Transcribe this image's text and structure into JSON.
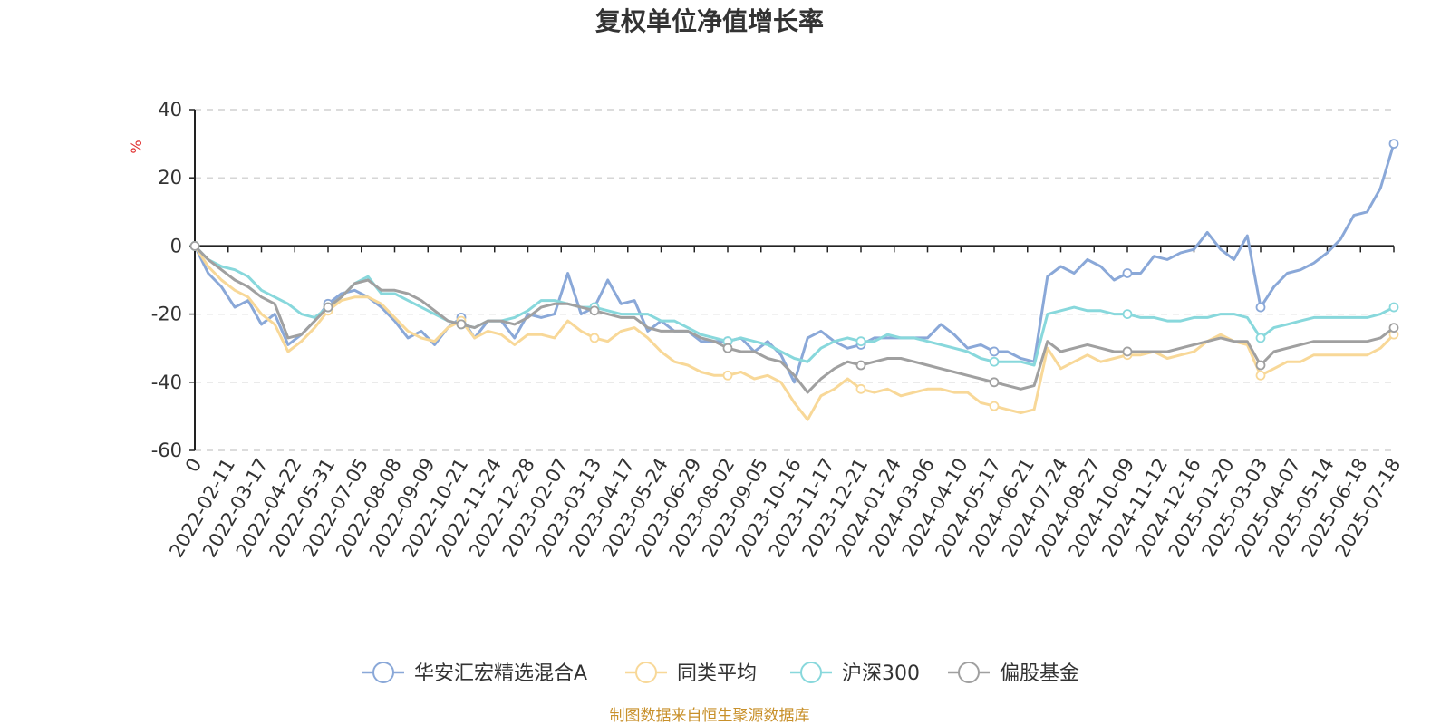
{
  "chart_data": {
    "type": "line",
    "title": "复权单位净值增长率",
    "unit": "%",
    "ylim": [
      -60,
      40
    ],
    "yticks": [
      40,
      20,
      0,
      -20,
      -40,
      -60
    ],
    "grid": true,
    "legend_position": "bottom",
    "x_labels": [
      "0",
      "2022-02-11",
      "2022-03-17",
      "2022-04-22",
      "2022-05-31",
      "2022-07-05",
      "2022-08-08",
      "2022-09-09",
      "2022-10-21",
      "2022-11-24",
      "2022-12-28",
      "2023-02-07",
      "2023-03-13",
      "2023-04-17",
      "2023-05-24",
      "2023-06-29",
      "2023-08-02",
      "2023-09-05",
      "2023-10-16",
      "2023-11-17",
      "2023-12-21",
      "2024-01-24",
      "2024-03-06",
      "2024-04-10",
      "2024-05-17",
      "2024-06-21",
      "2024-07-24",
      "2024-08-27",
      "2024-10-09",
      "2024-11-12",
      "2024-12-16",
      "2025-01-20",
      "2025-03-03",
      "2025-04-07",
      "2025-05-14",
      "2025-06-18",
      "2025-07-18"
    ],
    "series": [
      {
        "name": "华安汇宏精选混合A",
        "color": "#8aa8d8",
        "values": [
          0,
          -8,
          -12,
          -18,
          -16,
          -23,
          -20,
          -29,
          -26,
          -22,
          -17,
          -14,
          -13,
          -15,
          -18,
          -22,
          -27,
          -25,
          -29,
          -24,
          -21,
          -27,
          -22,
          -22,
          -27,
          -20,
          -21,
          -20,
          -8,
          -20,
          -18,
          -10,
          -17,
          -16,
          -25,
          -22,
          -25,
          -25,
          -28,
          -28,
          -28,
          -27,
          -31,
          -28,
          -32,
          -40,
          -27,
          -25,
          -28,
          -30,
          -29,
          -27,
          -27,
          -27,
          -27,
          -27,
          -23,
          -26,
          -30,
          -29,
          -31,
          -31,
          -33,
          -34,
          -9,
          -6,
          -8,
          -4,
          -6,
          -10,
          -8,
          -8,
          -3,
          -4,
          -2,
          -1,
          4,
          -1,
          -4,
          3,
          -18,
          -12,
          -8,
          -7,
          -5,
          -2,
          2,
          9,
          10,
          17,
          30
        ]
      },
      {
        "name": "同类平均",
        "color": "#f8d898",
        "values": [
          0,
          -6,
          -10,
          -13,
          -15,
          -20,
          -23,
          -31,
          -28,
          -24,
          -19,
          -16,
          -15,
          -15,
          -17,
          -21,
          -25,
          -27,
          -28,
          -24,
          -22,
          -27,
          -25,
          -26,
          -29,
          -26,
          -26,
          -27,
          -22,
          -25,
          -27,
          -28,
          -25,
          -24,
          -27,
          -31,
          -34,
          -35,
          -37,
          -38,
          -38,
          -37,
          -39,
          -38,
          -40,
          -46,
          -51,
          -44,
          -42,
          -39,
          -42,
          -43,
          -42,
          -44,
          -43,
          -42,
          -42,
          -43,
          -43,
          -46,
          -47,
          -48,
          -49,
          -48,
          -30,
          -36,
          -34,
          -32,
          -34,
          -33,
          -32,
          -32,
          -31,
          -33,
          -32,
          -31,
          -28,
          -26,
          -28,
          -29,
          -38,
          -36,
          -34,
          -34,
          -32,
          -32,
          -32,
          -32,
          -32,
          -30,
          -26
        ]
      },
      {
        "name": "沪深300",
        "color": "#88d8dc",
        "values": [
          0,
          -4,
          -6,
          -7,
          -9,
          -13,
          -15,
          -17,
          -20,
          -21,
          -18,
          -15,
          -11,
          -9,
          -14,
          -14,
          -16,
          -18,
          -20,
          -22,
          -23,
          -24,
          -22,
          -22,
          -21,
          -19,
          -16,
          -16,
          -17,
          -18,
          -18,
          -19,
          -20,
          -20,
          -20,
          -22,
          -22,
          -24,
          -26,
          -27,
          -28,
          -27,
          -28,
          -29,
          -31,
          -33,
          -34,
          -30,
          -28,
          -27,
          -28,
          -28,
          -26,
          -27,
          -27,
          -28,
          -29,
          -30,
          -31,
          -33,
          -34,
          -34,
          -34,
          -35,
          -20,
          -19,
          -18,
          -19,
          -19,
          -20,
          -20,
          -21,
          -21,
          -22,
          -22,
          -21,
          -21,
          -20,
          -20,
          -21,
          -27,
          -24,
          -23,
          -22,
          -21,
          -21,
          -21,
          -21,
          -21,
          -20,
          -18
        ]
      },
      {
        "name": "偏股基金",
        "color": "#a0a0a0",
        "values": [
          0,
          -4,
          -7,
          -10,
          -12,
          -15,
          -17,
          -27,
          -26,
          -22,
          -18,
          -15,
          -11,
          -10,
          -13,
          -13,
          -14,
          -16,
          -19,
          -22,
          -23,
          -24,
          -22,
          -22,
          -23,
          -21,
          -18,
          -17,
          -17,
          -18,
          -19,
          -20,
          -21,
          -21,
          -24,
          -25,
          -25,
          -25,
          -27,
          -28,
          -30,
          -31,
          -31,
          -33,
          -34,
          -38,
          -43,
          -39,
          -36,
          -34,
          -35,
          -34,
          -33,
          -33,
          -34,
          -35,
          -36,
          -37,
          -38,
          -39,
          -40,
          -41,
          -42,
          -41,
          -28,
          -31,
          -30,
          -29,
          -30,
          -31,
          -31,
          -31,
          -31,
          -31,
          -30,
          -29,
          -28,
          -27,
          -28,
          -28,
          -35,
          -31,
          -30,
          -29,
          -28,
          -28,
          -28,
          -28,
          -28,
          -27,
          -24
        ]
      }
    ]
  },
  "source_note": "制图数据来自恒生聚源数据库"
}
